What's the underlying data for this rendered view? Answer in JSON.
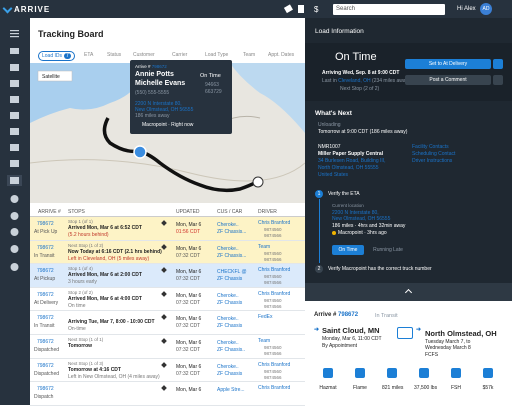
{
  "header": {
    "logo": "ARRIVE",
    "search_placeholder": "Search",
    "greeting": "Hi Alex",
    "avatar": "AD"
  },
  "board": {
    "title": "Tracking Board",
    "tabs": [
      "Load IDs",
      "ETA",
      "Status",
      "Customer",
      "Carrier",
      "Load Type",
      "Team",
      "Appt. Dates"
    ],
    "load_ids_count": "7"
  },
  "map": {
    "layer": "Satellite",
    "popup": {
      "arrive_label": "Arrive #",
      "arrive_id": "798672",
      "names": [
        "Annie Potts",
        "Michelle Evans"
      ],
      "phone": "(550) 555-5555",
      "status": "On Time",
      "numbers": [
        "94663",
        "663729"
      ],
      "address": [
        "2200 N Interstate 80,",
        "New Olmstead, OH 56555"
      ],
      "distance": "186 miles away",
      "source": "Macropoint · Right now"
    }
  },
  "table": {
    "columns": [
      "ARRIVE #",
      "STOPS",
      "UPDATED",
      "CUS / CAR",
      "DRIVER"
    ],
    "rows": [
      {
        "id": "798672",
        "status": "At Pick Up",
        "stop": "Stop 1 (of 1)",
        "main": "Arrived Mon, Mar 6 at 6:52 CDT",
        "sub": "(5.2 hours behind)",
        "upd": "Mon, Mar 6",
        "time": "01:56 CDT",
        "cus": "Cheroke..",
        "car": "ZF Chassis...",
        "driver": "Chris Branford",
        "d1": "9874560",
        "d2": "9874566"
      },
      {
        "id": "798672",
        "status": "In Transit",
        "stop": "Next Stop (1 of 2)",
        "main": "Now Today at 6:16 CDT (2.1 hrs behind)",
        "sub": "Left in Cleveland, OH (5 miles away)",
        "upd": "Mon, Mar 6",
        "time": "07:32 CDT",
        "cus": "Cheroke..",
        "car": "ZF Chassis...",
        "driver": "Team",
        "d1": "9874560",
        "d2": "9874566"
      },
      {
        "id": "798672",
        "status": "At Pickup",
        "stop": "Stop 1 (of 4)",
        "main": "Arrived Mon, Mar 6 at 2:00 CDT",
        "sub": "3 hours early",
        "upd": "Mon, Mar 6",
        "time": "07:32 CDT",
        "cus": "CHECKFL @",
        "car": "ZF Chassis",
        "driver": "Chris Branford",
        "d1": "9874560",
        "d2": "9874566"
      },
      {
        "id": "798672",
        "status": "At Delivery",
        "stop": "Stop 2 (of 2)",
        "main": "Arrived Mon, Mar 6 at 4:00 CDT",
        "sub": "On time",
        "upd": "Mon, Mar 6",
        "time": "07:32 CDT",
        "cus": "Cheroke..",
        "car": "ZF Chassis",
        "driver": "Chris Branford",
        "d1": "9874560",
        "d2": "9874566"
      },
      {
        "id": "798672",
        "status": "In Transit",
        "stop": "",
        "main": "Arriving Tue, Mar 7, 8:00 - 10:00 CDT",
        "sub": "On-time",
        "upd": "Mon, Mar 6",
        "time": "07:32 CDT",
        "cus": "Cheroke..",
        "car": "ZF Chassis",
        "driver": "FedEx",
        "d1": "",
        "d2": ""
      },
      {
        "id": "798672",
        "status": "Dispatched",
        "stop": "Next Stop (1 of 1)",
        "main": "Tomorrow",
        "sub": "",
        "upd": "Mon, Mar 6",
        "time": "07:32 CDT",
        "cus": "Cheroke..",
        "car": "ZF Chassis..",
        "driver": "Team",
        "d1": "9874560",
        "d2": "9874566"
      },
      {
        "id": "798672",
        "status": "Dispatched",
        "stop": "Next Stop (1 of 3)",
        "main": "Tomorrow at 4:16 CDT",
        "sub": "Left in New Olmstead, OH (4 miles away)",
        "upd": "Mon, Mar 6",
        "time": "07:32 CDT",
        "cus": "Cheroke..",
        "car": "ZF Chassis",
        "driver": "Chris Branford",
        "d1": "9874560",
        "d2": "9874566"
      },
      {
        "id": "798672",
        "status": "Dispatch",
        "stop": "",
        "main": "",
        "sub": "",
        "upd": "Mon, Mar 6",
        "time": "",
        "cus": "Apple Stre...",
        "car": "",
        "driver": "Chris Branford",
        "d1": "",
        "d2": ""
      }
    ]
  },
  "panel": {
    "title": "Load Information",
    "status": "On Time",
    "arriving": "Arriving Wed, Sep. 8 at 9:00 CDT",
    "last_prefix": "Last in",
    "last_city": "Cleveland, OH",
    "last_dist": "(234 miles away)",
    "next_stop": "Next Stop (2 of 2)",
    "btn_primary": "Set to At Delivery",
    "btn_secondary": "Post a Comment",
    "whats_next": "What's Next",
    "activity": "Unloading",
    "activity_time": "Tomorrow at 9:00 CDT (186 miles away)",
    "facility_id": "NMR1007",
    "facility": "Miller Paper Supply Central",
    "facility_address": [
      "34 Burlesen Road, Building III,",
      "North Olmstead, OH 55555",
      "United States"
    ],
    "links": [
      "Facility Contacts",
      "Scheduling Contact",
      "Driver Instructions"
    ],
    "step1": {
      "num": "1",
      "title": "Verify the ETA",
      "loc_label": "Current location",
      "loc": [
        "2200 N Interstate 80,",
        "New Olmstead, OH 56555"
      ],
      "dist": "186 miles · 4hrs and 32min away",
      "source": "Macropoint · 3hrs ago",
      "btn_on": "On Time",
      "btn_late": "Running Late"
    },
    "step2": {
      "num": "2",
      "title": "Verify Macropoint has the correct truck number"
    }
  },
  "summary": {
    "arrive_label": "Arrive #",
    "arrive_id": "798672",
    "status": "In Transit",
    "origin": "Saint Cloud, MN",
    "origin_time": "Monday, Mar 6, 11:00 CDT",
    "origin_note": "By Appointment",
    "dest": "North Olmstead, OH",
    "dest_time": [
      "Tuesday March 7, to",
      "Wednesday March 8"
    ],
    "dest_note": "FCFS",
    "icons": [
      "Hazmat",
      "Flame",
      "821 miles",
      "37,500 lbs",
      "FSH",
      "$57k"
    ]
  }
}
